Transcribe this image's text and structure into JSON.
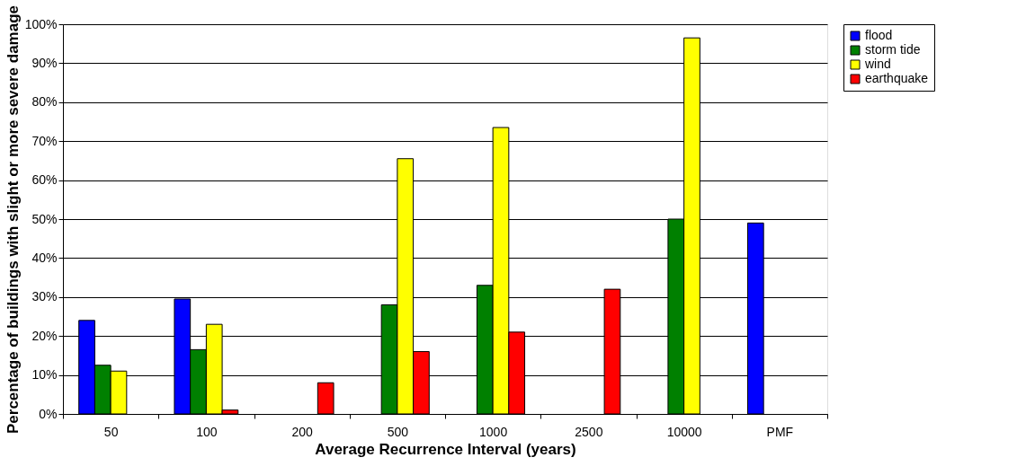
{
  "chart_data": {
    "type": "bar",
    "xlabel": "Average Recurrence Interval (years)",
    "ylabel": "Percentage of buildings with slight or more severe damage",
    "categories": [
      "50",
      "100",
      "200",
      "500",
      "1000",
      "2500",
      "10000",
      "PMF"
    ],
    "series": [
      {
        "name": "flood",
        "color": "#0000ff",
        "values": [
          24,
          29.5,
          null,
          null,
          null,
          null,
          null,
          49
        ]
      },
      {
        "name": "storm tide",
        "color": "#008000",
        "values": [
          12.5,
          16.5,
          null,
          28,
          33,
          null,
          50,
          null
        ]
      },
      {
        "name": "wind",
        "color": "#ffff00",
        "values": [
          11,
          23,
          null,
          65.5,
          73.5,
          null,
          96.5,
          null
        ]
      },
      {
        "name": "earthquake",
        "color": "#ff0000",
        "values": [
          null,
          1,
          8,
          16,
          21,
          32,
          null,
          null
        ]
      }
    ],
    "ylim": [
      0,
      100
    ],
    "yticks": [
      {
        "value": 0,
        "label": "0%"
      },
      {
        "value": 10,
        "label": "10%"
      },
      {
        "value": 20,
        "label": "20%"
      },
      {
        "value": 30,
        "label": "30%"
      },
      {
        "value": 40,
        "label": "40%"
      },
      {
        "value": 50,
        "label": "50%"
      },
      {
        "value": 60,
        "label": "60%"
      },
      {
        "value": 70,
        "label": "70%"
      },
      {
        "value": 80,
        "label": "80%"
      },
      {
        "value": 90,
        "label": "90%"
      },
      {
        "value": 100,
        "label": "100%"
      }
    ],
    "grid": "y",
    "legend": "right"
  }
}
